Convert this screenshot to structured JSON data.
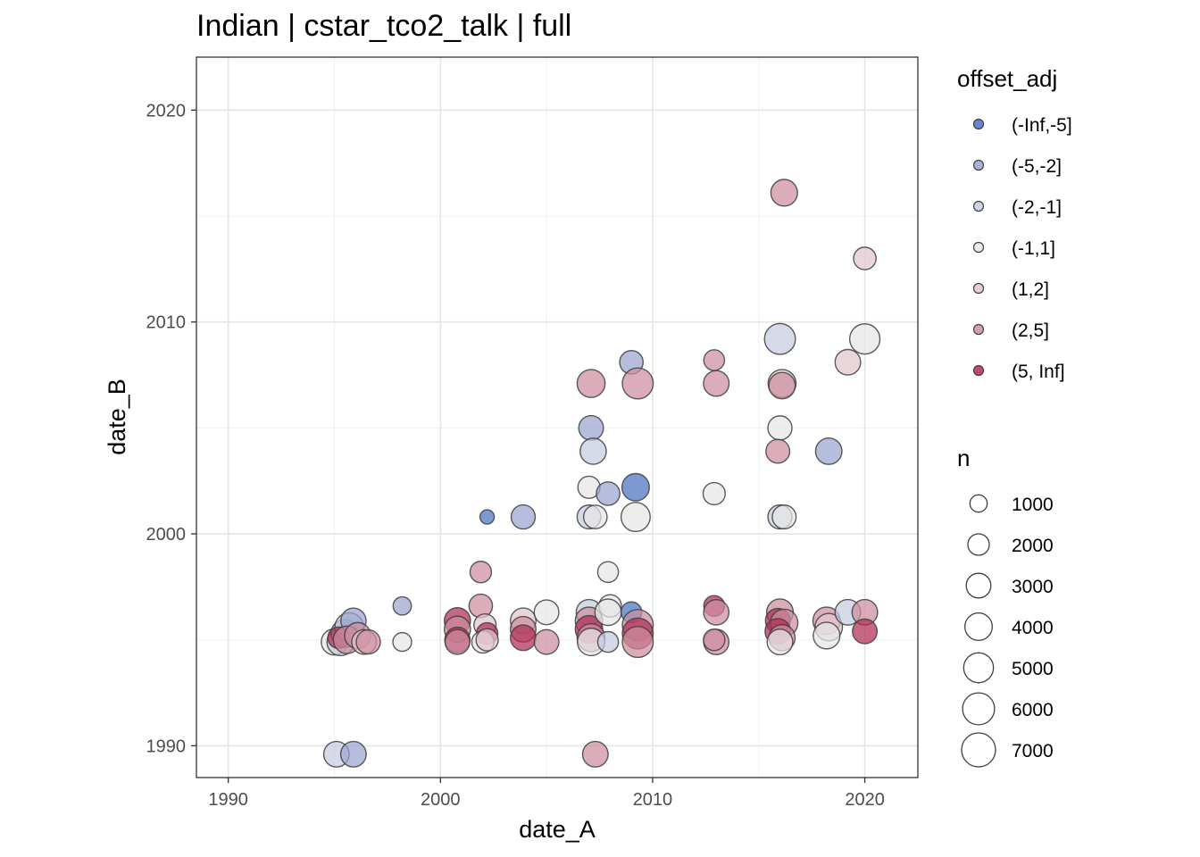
{
  "chart_data": {
    "type": "scatter",
    "title": "Indian | cstar_tco2_talk | full",
    "xlabel": "date_A",
    "ylabel": "date_B",
    "xlim": [
      1988.5,
      2022.5
    ],
    "ylim": [
      1988.5,
      2022.5
    ],
    "x_ticks": [
      1990,
      2000,
      2010,
      2020
    ],
    "y_ticks": [
      1990,
      2000,
      2010,
      2020
    ],
    "grid": true,
    "legend_position": "right",
    "color_legend": {
      "title": "offset_adj",
      "entries": [
        {
          "label": "(-Inf,-5]",
          "color": "#4a72c0"
        },
        {
          "label": "(-5,-2]",
          "color": "#9aa4d0"
        },
        {
          "label": "(-2,-1]",
          "color": "#c6cbde"
        },
        {
          "label": "(-1,1]",
          "color": "#e6e6e6"
        },
        {
          "label": "(1,2]",
          "color": "#e0c6cd"
        },
        {
          "label": "(2,5]",
          "color": "#cd8ea0"
        },
        {
          "label": "(5, Inf]",
          "color": "#b02c55"
        }
      ]
    },
    "size_legend": {
      "title": "n",
      "entries": [
        {
          "label": "1000",
          "value": 1000
        },
        {
          "label": "2000",
          "value": 2000
        },
        {
          "label": "3000",
          "value": 3000
        },
        {
          "label": "4000",
          "value": 4000
        },
        {
          "label": "5000",
          "value": 5000
        },
        {
          "label": "6000",
          "value": 6000
        },
        {
          "label": "7000",
          "value": 7000
        }
      ]
    },
    "points": [
      {
        "x": 1995.1,
        "y": 1989.6,
        "n": 3300,
        "offset": "(-2,-1]"
      },
      {
        "x": 1995.9,
        "y": 1989.6,
        "n": 3300,
        "offset": "(-5,-2]"
      },
      {
        "x": 2007.3,
        "y": 1989.6,
        "n": 3300,
        "offset": "(2,5]"
      },
      {
        "x": 1995.0,
        "y": 1994.9,
        "n": 3500,
        "offset": "(-1,1]"
      },
      {
        "x": 1995.3,
        "y": 1994.9,
        "n": 4000,
        "offset": "(-2,-1]"
      },
      {
        "x": 1995.5,
        "y": 1995.3,
        "n": 4200,
        "offset": "(-5,-2]"
      },
      {
        "x": 1995.7,
        "y": 1995.6,
        "n": 4500,
        "offset": "(-2,-1]"
      },
      {
        "x": 1995.9,
        "y": 1995.9,
        "n": 3200,
        "offset": "(-5,-2]"
      },
      {
        "x": 1995.2,
        "y": 1995.1,
        "n": 2000,
        "offset": "(5, Inf]"
      },
      {
        "x": 1995.6,
        "y": 1995.0,
        "n": 4000,
        "offset": "(2,5]"
      },
      {
        "x": 1996.1,
        "y": 1995.2,
        "n": 3500,
        "offset": "(2,5]"
      },
      {
        "x": 1996.4,
        "y": 1994.9,
        "n": 3000,
        "offset": "(1,2]"
      },
      {
        "x": 1996.6,
        "y": 1994.9,
        "n": 2800,
        "offset": "(2,5]"
      },
      {
        "x": 1998.2,
        "y": 1996.6,
        "n": 1200,
        "offset": "(-5,-2]"
      },
      {
        "x": 1998.2,
        "y": 1994.9,
        "n": 1300,
        "offset": "(-1,1]"
      },
      {
        "x": 2000.8,
        "y": 1995.9,
        "n": 3500,
        "offset": "(5, Inf]"
      },
      {
        "x": 2000.8,
        "y": 1995.5,
        "n": 3500,
        "offset": "(2,5]"
      },
      {
        "x": 2000.8,
        "y": 1995.0,
        "n": 3200,
        "offset": "(5, Inf]"
      },
      {
        "x": 2000.8,
        "y": 1994.9,
        "n": 3000,
        "offset": "(2,5]"
      },
      {
        "x": 2002.2,
        "y": 2000.8,
        "n": 500,
        "offset": "(-Inf,-5]"
      },
      {
        "x": 2001.9,
        "y": 1998.2,
        "n": 2000,
        "offset": "(2,5]"
      },
      {
        "x": 2001.9,
        "y": 1996.6,
        "n": 2600,
        "offset": "(2,5]"
      },
      {
        "x": 2002.1,
        "y": 1995.7,
        "n": 2200,
        "offset": "(1,2]"
      },
      {
        "x": 2002.2,
        "y": 1995.3,
        "n": 2000,
        "offset": "(5, Inf]"
      },
      {
        "x": 2002.0,
        "y": 1994.9,
        "n": 2200,
        "offset": "(-1,1]"
      },
      {
        "x": 2002.2,
        "y": 1995.0,
        "n": 2200,
        "offset": "(1,2]"
      },
      {
        "x": 2003.9,
        "y": 2000.8,
        "n": 2800,
        "offset": "(-5,-2]"
      },
      {
        "x": 2003.9,
        "y": 1995.9,
        "n": 3300,
        "offset": "(1,2]"
      },
      {
        "x": 2003.9,
        "y": 1995.5,
        "n": 3300,
        "offset": "(2,5]"
      },
      {
        "x": 2003.9,
        "y": 1995.1,
        "n": 3300,
        "offset": "(5, Inf]"
      },
      {
        "x": 2005.0,
        "y": 1996.3,
        "n": 3000,
        "offset": "(-1,1]"
      },
      {
        "x": 2005.0,
        "y": 1994.9,
        "n": 3000,
        "offset": "(2,5]"
      },
      {
        "x": 2007.1,
        "y": 2007.1,
        "n": 4200,
        "offset": "(2,5]"
      },
      {
        "x": 2007.1,
        "y": 2005.0,
        "n": 3000,
        "offset": "(-5,-2]"
      },
      {
        "x": 2007.2,
        "y": 2003.9,
        "n": 3500,
        "offset": "(-2,-1]"
      },
      {
        "x": 2007.0,
        "y": 2002.2,
        "n": 2200,
        "offset": "(-1,1]"
      },
      {
        "x": 2007.0,
        "y": 2000.8,
        "n": 2700,
        "offset": "(-2,-1]"
      },
      {
        "x": 2007.3,
        "y": 2000.8,
        "n": 2600,
        "offset": "(-1,1]"
      },
      {
        "x": 2007.0,
        "y": 1996.3,
        "n": 3300,
        "offset": "(-2,-1]"
      },
      {
        "x": 2007.0,
        "y": 1995.9,
        "n": 4000,
        "offset": "(2,5]"
      },
      {
        "x": 2007.0,
        "y": 1995.5,
        "n": 4000,
        "offset": "(5, Inf]"
      },
      {
        "x": 2007.1,
        "y": 1995.1,
        "n": 4200,
        "offset": "(2,5]"
      },
      {
        "x": 2007.1,
        "y": 1994.9,
        "n": 4000,
        "offset": "(-1,1]"
      },
      {
        "x": 2007.9,
        "y": 1998.2,
        "n": 1800,
        "offset": "(-1,1]"
      },
      {
        "x": 2007.9,
        "y": 2001.9,
        "n": 2600,
        "offset": "(-5,-2]"
      },
      {
        "x": 2008.0,
        "y": 1996.6,
        "n": 2300,
        "offset": "(-1,1]"
      },
      {
        "x": 2007.9,
        "y": 1996.3,
        "n": 3600,
        "offset": "(-1,1]"
      },
      {
        "x": 2007.9,
        "y": 1994.9,
        "n": 1800,
        "offset": "(-2,-1]"
      },
      {
        "x": 2009.0,
        "y": 2008.1,
        "n": 2600,
        "offset": "(-5,-2]"
      },
      {
        "x": 2009.3,
        "y": 2007.1,
        "n": 5500,
        "offset": "(2,5]"
      },
      {
        "x": 2009.2,
        "y": 2002.2,
        "n": 4000,
        "offset": "(-Inf,-5]"
      },
      {
        "x": 2009.2,
        "y": 2000.8,
        "n": 4700,
        "offset": "(-1,1]"
      },
      {
        "x": 2009.0,
        "y": 1996.3,
        "n": 1800,
        "offset": "(-Inf,-5]"
      },
      {
        "x": 2009.3,
        "y": 1995.7,
        "n": 5500,
        "offset": "(2,5]"
      },
      {
        "x": 2009.3,
        "y": 1995.3,
        "n": 5500,
        "offset": "(5, Inf]"
      },
      {
        "x": 2009.3,
        "y": 1994.9,
        "n": 5500,
        "offset": "(2,5]"
      },
      {
        "x": 2012.9,
        "y": 2008.2,
        "n": 1800,
        "offset": "(2,5]"
      },
      {
        "x": 2013.0,
        "y": 2007.1,
        "n": 3300,
        "offset": "(2,5]"
      },
      {
        "x": 2012.9,
        "y": 2001.9,
        "n": 2200,
        "offset": "(-1,1]"
      },
      {
        "x": 2012.9,
        "y": 1996.6,
        "n": 1800,
        "offset": "(5, Inf]"
      },
      {
        "x": 2013.0,
        "y": 1996.3,
        "n": 3200,
        "offset": "(2,5]"
      },
      {
        "x": 2013.0,
        "y": 1994.9,
        "n": 3200,
        "offset": "(2,5]"
      },
      {
        "x": 2012.9,
        "y": 1995.0,
        "n": 2000,
        "offset": "(2,5]"
      },
      {
        "x": 2016.2,
        "y": 2016.1,
        "n": 3700,
        "offset": "(2,5]"
      },
      {
        "x": 2016.0,
        "y": 2009.2,
        "n": 5500,
        "offset": "(-2,-1]"
      },
      {
        "x": 2016.1,
        "y": 2007.1,
        "n": 4200,
        "offset": "(1,2]"
      },
      {
        "x": 2016.1,
        "y": 2007.0,
        "n": 3600,
        "offset": "(2,5]"
      },
      {
        "x": 2016.0,
        "y": 2005.0,
        "n": 2800,
        "offset": "(-1,1]"
      },
      {
        "x": 2015.9,
        "y": 2003.9,
        "n": 2700,
        "offset": "(2,5]"
      },
      {
        "x": 2016.0,
        "y": 2000.8,
        "n": 2800,
        "offset": "(-2,-1]"
      },
      {
        "x": 2016.2,
        "y": 2000.8,
        "n": 2700,
        "offset": "(-1,1]"
      },
      {
        "x": 2016.0,
        "y": 1996.3,
        "n": 3700,
        "offset": "(2,5]"
      },
      {
        "x": 2015.9,
        "y": 1995.9,
        "n": 3000,
        "offset": "(5, Inf]"
      },
      {
        "x": 2016.2,
        "y": 1995.8,
        "n": 4000,
        "offset": "(2,5]"
      },
      {
        "x": 2015.9,
        "y": 1995.4,
        "n": 3300,
        "offset": "(5, Inf]"
      },
      {
        "x": 2016.1,
        "y": 1995.1,
        "n": 3500,
        "offset": "(2,5]"
      },
      {
        "x": 2016.0,
        "y": 1994.9,
        "n": 3300,
        "offset": "(-1,1]"
      },
      {
        "x": 2018.3,
        "y": 2003.9,
        "n": 3600,
        "offset": "(-5,-2]"
      },
      {
        "x": 2018.2,
        "y": 1995.9,
        "n": 4000,
        "offset": "(2,5]"
      },
      {
        "x": 2018.3,
        "y": 1995.6,
        "n": 4000,
        "offset": "(1,2]"
      },
      {
        "x": 2018.2,
        "y": 1995.2,
        "n": 3700,
        "offset": "(-1,1]"
      },
      {
        "x": 2019.2,
        "y": 2008.1,
        "n": 3300,
        "offset": "(1,2]"
      },
      {
        "x": 2019.2,
        "y": 1996.3,
        "n": 3300,
        "offset": "(-2,-1]"
      },
      {
        "x": 2020.0,
        "y": 2013.0,
        "n": 2300,
        "offset": "(1,2]"
      },
      {
        "x": 2020.0,
        "y": 2009.2,
        "n": 5200,
        "offset": "(-1,1]"
      },
      {
        "x": 2020.0,
        "y": 1996.3,
        "n": 3300,
        "offset": "(2,5]"
      },
      {
        "x": 2020.0,
        "y": 1995.4,
        "n": 3000,
        "offset": "(5, Inf]"
      }
    ]
  }
}
